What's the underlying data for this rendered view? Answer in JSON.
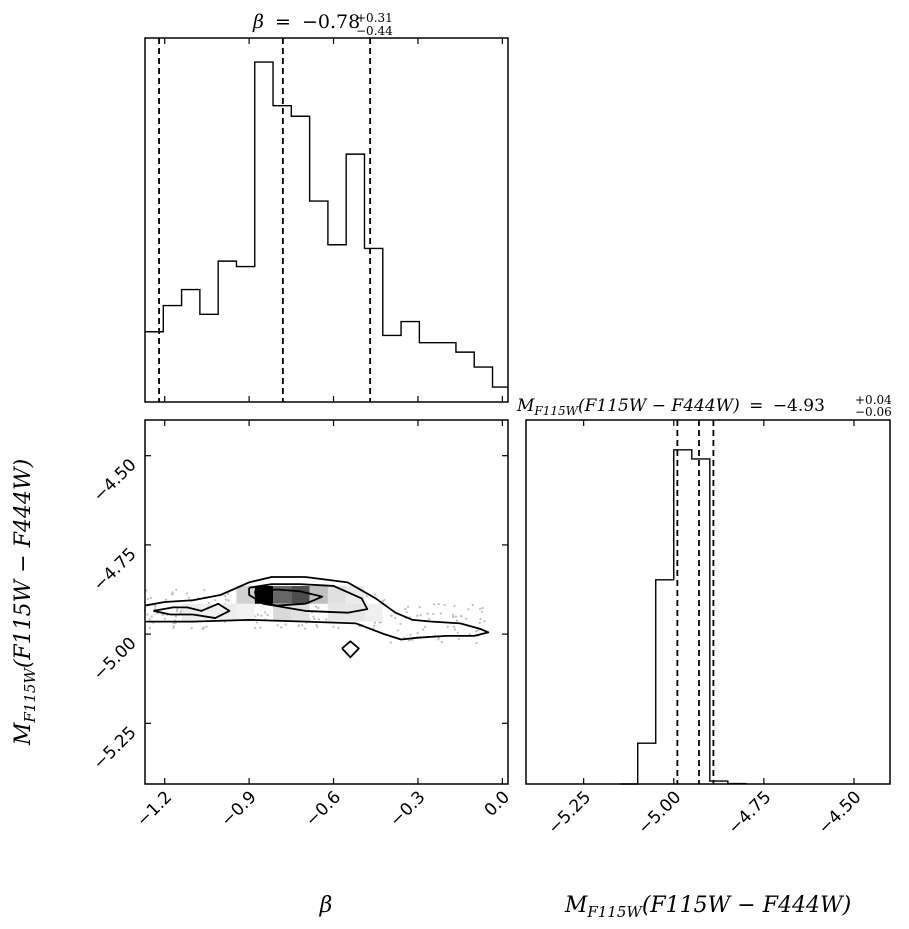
{
  "chart_data": [
    {
      "type": "histogram",
      "panel": "beta-marginal",
      "parameter": "β",
      "title": {
        "symbol": "β",
        "equals": "=",
        "median": "−0.78",
        "upper": "+0.31",
        "lower": "−0.44"
      },
      "xlim": [
        -1.27,
        0.02
      ],
      "bin_edges": [
        -1.27,
        -1.205,
        -1.14,
        -1.075,
        -1.01,
        -0.945,
        -0.88,
        -0.815,
        -0.75,
        -0.685,
        -0.62,
        -0.555,
        -0.49,
        -0.425,
        -0.36,
        -0.295,
        -0.23,
        -0.165,
        -0.1,
        -0.035,
        0.02
      ],
      "counts": [
        19.3,
        26.5,
        30.9,
        24.1,
        38.7,
        37.2,
        93.4,
        81.4,
        78.5,
        55.2,
        43.2,
        68.1,
        42.2,
        18.3,
        22.1,
        16.3,
        16.3,
        13.7,
        9.6,
        4.1
      ],
      "ylim": [
        0,
        100
      ],
      "quantiles": [
        -1.22,
        -0.78,
        -0.47
      ]
    },
    {
      "type": "histogram",
      "panel": "mag-marginal",
      "parameter": "M_F115W(F115W − F444W)",
      "title": {
        "symbol": "M",
        "subscript": "F115W",
        "expr": "(F115W − F444W)",
        "equals": "=",
        "median": "−4.93",
        "upper": "+0.04",
        "lower": "−0.06"
      },
      "xlim": [
        -5.41,
        -4.4
      ],
      "bin_edges": [
        -5.1,
        -5.05,
        -5.0,
        -4.95,
        -4.9,
        -4.85,
        -4.8
      ],
      "counts": [
        11.2,
        56.1,
        91.8,
        89.3,
        0.8,
        0.1
      ],
      "ylim": [
        0,
        100
      ],
      "quantiles": [
        -4.99,
        -4.93,
        -4.89
      ],
      "x_ticks": [
        "−5.25",
        "−5.00",
        "−4.75",
        "−4.50"
      ],
      "x_tick_values": [
        -5.25,
        -5.0,
        -4.75,
        -4.5
      ]
    },
    {
      "type": "2d-histogram-contour",
      "panel": "joint",
      "x_parameter": "β",
      "y_parameter": "M_F115W(F115W − F444W)",
      "xlim": [
        -1.27,
        0.02
      ],
      "ylim": [
        -5.42,
        -4.4
      ],
      "x_ticks": [
        "−1.2",
        "−0.9",
        "−0.6",
        "−0.3",
        "0.0"
      ],
      "x_tick_values": [
        -1.2,
        -0.9,
        -0.6,
        -0.3,
        0.0
      ],
      "y_ticks": [
        "−4.50",
        "−4.75",
        "−5.00",
        "−5.25"
      ],
      "y_tick_values": [
        -4.5,
        -4.75,
        -5.0,
        -5.25
      ],
      "density_cells": [
        {
          "x": -0.88,
          "y": -4.89,
          "w": 0.065,
          "h": 0.05,
          "level": 1.0
        },
        {
          "x": -0.815,
          "y": -4.89,
          "w": 0.065,
          "h": 0.05,
          "level": 0.6
        },
        {
          "x": -0.75,
          "y": -4.89,
          "w": 0.065,
          "h": 0.05,
          "level": 0.7
        },
        {
          "x": -0.685,
          "y": -4.89,
          "w": 0.065,
          "h": 0.05,
          "level": 0.25
        },
        {
          "x": -0.62,
          "y": -4.89,
          "w": 0.065,
          "h": 0.05,
          "level": 0.12
        },
        {
          "x": -0.945,
          "y": -4.89,
          "w": 0.065,
          "h": 0.05,
          "level": 0.18
        },
        {
          "x": -0.815,
          "y": -4.94,
          "w": 0.065,
          "h": 0.05,
          "level": 0.15
        },
        {
          "x": -0.75,
          "y": -4.94,
          "w": 0.065,
          "h": 0.05,
          "level": 0.12
        },
        {
          "x": -0.62,
          "y": -4.94,
          "w": 0.065,
          "h": 0.05,
          "level": 0.1
        },
        {
          "x": -0.555,
          "y": -4.94,
          "w": 0.065,
          "h": 0.05,
          "level": 0.1
        },
        {
          "x": -0.555,
          "y": -4.89,
          "w": 0.065,
          "h": 0.05,
          "level": 0.08
        },
        {
          "x": -0.49,
          "y": -4.94,
          "w": 0.065,
          "h": 0.05,
          "level": 0.06
        },
        {
          "x": -1.14,
          "y": -4.94,
          "w": 0.065,
          "h": 0.05,
          "level": 0.08
        },
        {
          "x": -1.075,
          "y": -4.94,
          "w": 0.065,
          "h": 0.05,
          "level": 0.06
        },
        {
          "x": -1.01,
          "y": -4.94,
          "w": 0.065,
          "h": 0.05,
          "level": 0.07
        },
        {
          "x": -0.945,
          "y": -4.94,
          "w": 0.065,
          "h": 0.05,
          "level": 0.05
        }
      ],
      "contours": [
        [
          [
            -1.27,
            -4.92
          ],
          [
            -1.2,
            -4.91
          ],
          [
            -1.1,
            -4.905
          ],
          [
            -1.0,
            -4.89
          ],
          [
            -0.9,
            -4.855
          ],
          [
            -0.82,
            -4.84
          ],
          [
            -0.7,
            -4.84
          ],
          [
            -0.55,
            -4.855
          ],
          [
            -0.45,
            -4.9
          ],
          [
            -0.38,
            -4.94
          ],
          [
            -0.32,
            -4.96
          ],
          [
            -0.25,
            -4.965
          ],
          [
            -0.15,
            -4.97
          ],
          [
            -0.08,
            -4.985
          ],
          [
            -0.05,
            -4.995
          ],
          [
            -0.1,
            -5.005
          ],
          [
            -0.2,
            -5.005
          ],
          [
            -0.3,
            -5.01
          ],
          [
            -0.36,
            -5.015
          ],
          [
            -0.42,
            -5.0
          ],
          [
            -0.52,
            -4.97
          ],
          [
            -0.7,
            -4.965
          ],
          [
            -0.9,
            -4.96
          ],
          [
            -1.1,
            -4.965
          ],
          [
            -1.27,
            -4.965
          ]
        ],
        [
          [
            -0.9,
            -4.87
          ],
          [
            -0.82,
            -4.86
          ],
          [
            -0.72,
            -4.86
          ],
          [
            -0.6,
            -4.865
          ],
          [
            -0.5,
            -4.9
          ],
          [
            -0.48,
            -4.93
          ],
          [
            -0.55,
            -4.94
          ],
          [
            -0.7,
            -4.935
          ],
          [
            -0.85,
            -4.915
          ],
          [
            -0.9,
            -4.89
          ],
          [
            -0.9,
            -4.87
          ]
        ],
        [
          [
            -0.88,
            -4.88
          ],
          [
            -0.8,
            -4.875
          ],
          [
            -0.72,
            -4.88
          ],
          [
            -0.64,
            -4.895
          ],
          [
            -0.7,
            -4.915
          ],
          [
            -0.8,
            -4.92
          ],
          [
            -0.87,
            -4.91
          ],
          [
            -0.88,
            -4.88
          ]
        ],
        [
          [
            -1.24,
            -4.935
          ],
          [
            -1.17,
            -4.925
          ],
          [
            -1.12,
            -4.925
          ],
          [
            -1.07,
            -4.935
          ],
          [
            -1.01,
            -4.915
          ],
          [
            -0.97,
            -4.935
          ],
          [
            -1.02,
            -4.955
          ],
          [
            -1.1,
            -4.945
          ],
          [
            -1.18,
            -4.945
          ],
          [
            -1.24,
            -4.935
          ]
        ],
        [
          [
            -0.57,
            -5.04
          ],
          [
            -0.54,
            -5.02
          ],
          [
            -0.51,
            -5.04
          ],
          [
            -0.54,
            -5.065
          ],
          [
            -0.57,
            -5.04
          ]
        ]
      ]
    }
  ],
  "axis_labels": {
    "x_beta": "β",
    "x_mag": {
      "symbol": "M",
      "subscript": "F115W",
      "expr": "(F115W − F444W)"
    },
    "y_mag": {
      "symbol": "M",
      "subscript": "F115W",
      "expr": "(F115W − F444W)"
    }
  },
  "colors": {
    "ink": "#000000",
    "background": "#ffffff",
    "scatter": "#bdbdbd"
  }
}
